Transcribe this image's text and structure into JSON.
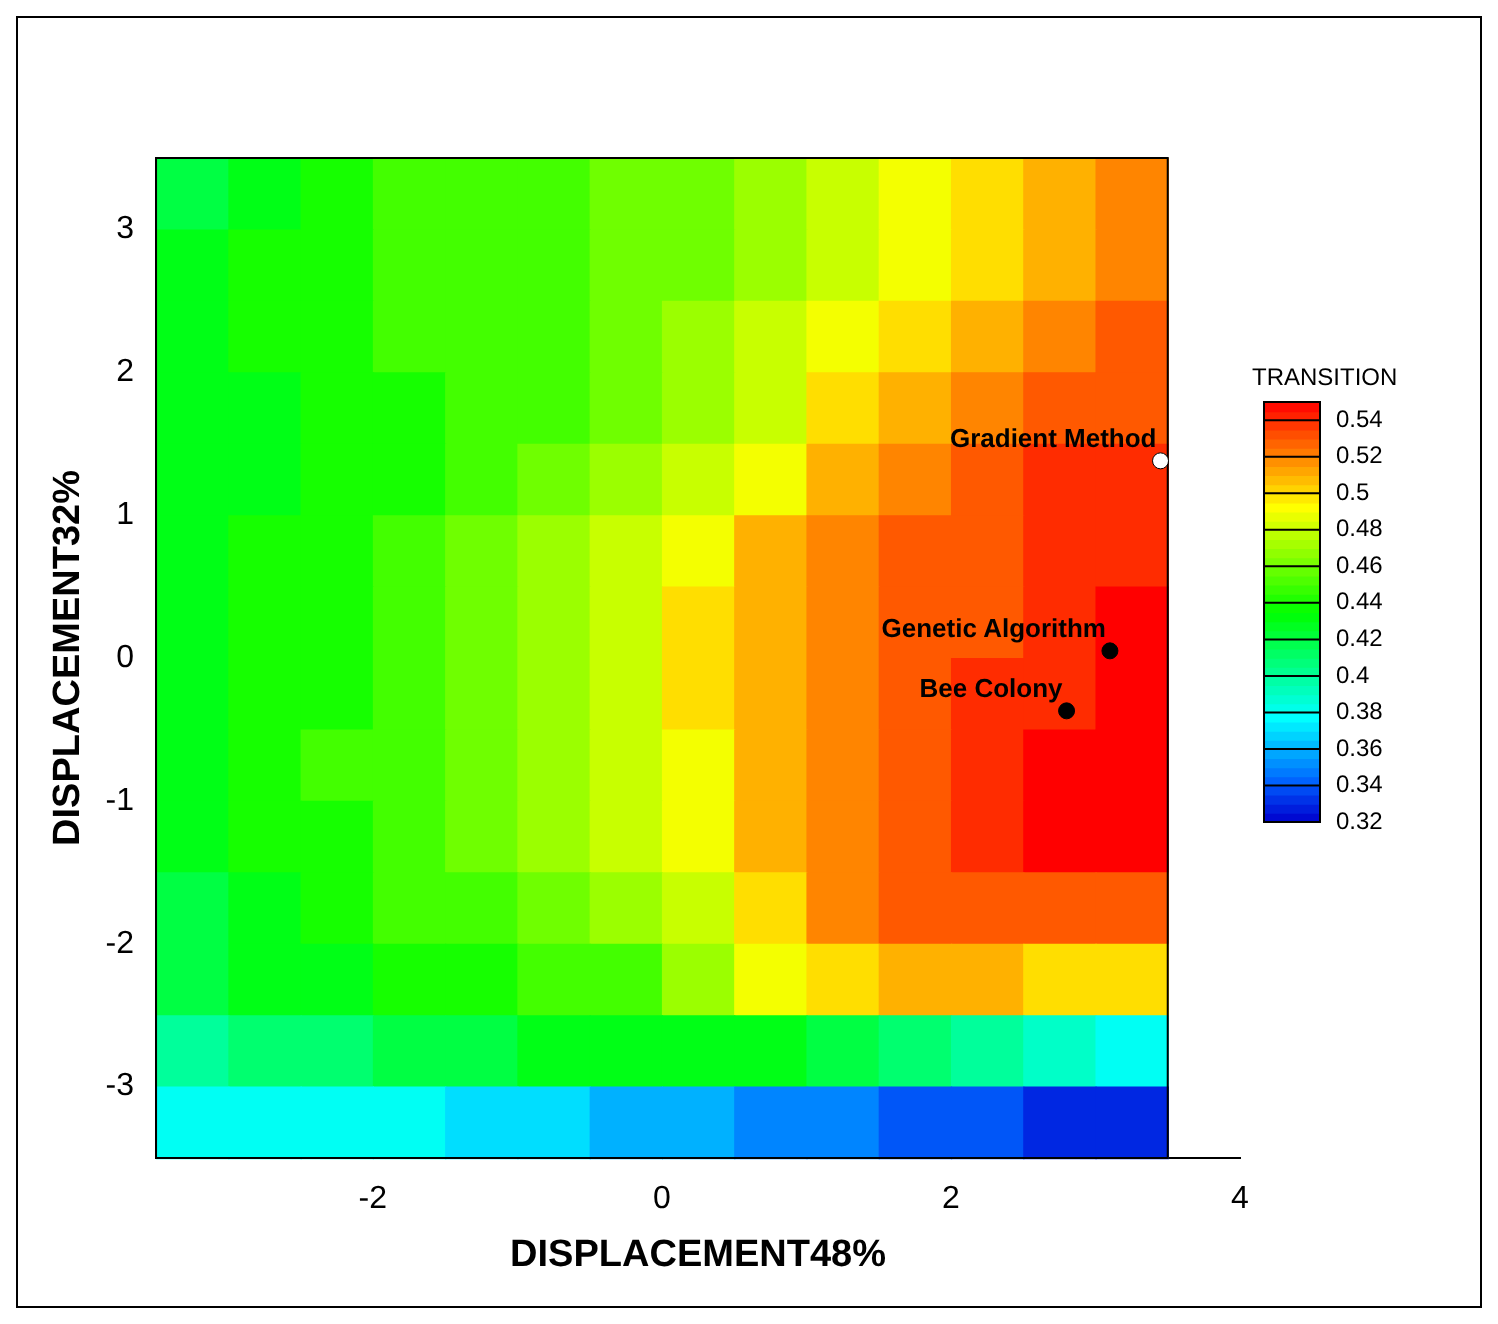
{
  "chart_data": {
    "type": "heatmap",
    "xlabel": "DISPLACEMENT48%",
    "ylabel": "DISPLACEMENT32%",
    "clabel": "TRANSITION",
    "x": [
      -3.25,
      -2.75,
      -2.25,
      -1.75,
      -1.25,
      -0.75,
      -0.25,
      0.25,
      0.75,
      1.25,
      1.75,
      2.25,
      2.75,
      3.25
    ],
    "y": [
      3.25,
      2.75,
      2.25,
      1.75,
      1.25,
      0.75,
      0.25,
      -0.25,
      -0.75,
      -1.25,
      -1.75,
      -2.25,
      -2.75,
      -3.25
    ],
    "xlim": [
      -3.5,
      4
    ],
    "ylim": [
      -3.5,
      3.5
    ],
    "xticks": [
      -2,
      0,
      2,
      4
    ],
    "yticks": [
      -3,
      -2,
      -1,
      0,
      1,
      2,
      3
    ],
    "clim": [
      0.32,
      0.55
    ],
    "cticks": [
      0.32,
      0.34,
      0.36,
      0.38,
      0.4,
      0.42,
      0.44,
      0.46,
      0.48,
      0.5,
      0.52,
      0.54
    ],
    "cells": [
      [
        0.42,
        0.43,
        0.44,
        0.45,
        0.45,
        0.45,
        0.46,
        0.46,
        0.47,
        0.48,
        0.49,
        0.5,
        0.51,
        0.52
      ],
      [
        0.43,
        0.44,
        0.44,
        0.45,
        0.45,
        0.45,
        0.46,
        0.46,
        0.47,
        0.48,
        0.49,
        0.5,
        0.51,
        0.52
      ],
      [
        0.43,
        0.44,
        0.44,
        0.45,
        0.45,
        0.45,
        0.46,
        0.47,
        0.48,
        0.49,
        0.5,
        0.51,
        0.52,
        0.53
      ],
      [
        0.43,
        0.43,
        0.44,
        0.44,
        0.45,
        0.45,
        0.46,
        0.47,
        0.48,
        0.5,
        0.51,
        0.52,
        0.53,
        0.53
      ],
      [
        0.43,
        0.43,
        0.44,
        0.44,
        0.45,
        0.46,
        0.47,
        0.48,
        0.49,
        0.51,
        0.52,
        0.53,
        0.54,
        0.54
      ],
      [
        0.43,
        0.44,
        0.44,
        0.45,
        0.46,
        0.47,
        0.48,
        0.49,
        0.51,
        0.52,
        0.53,
        0.53,
        0.54,
        0.54
      ],
      [
        0.43,
        0.44,
        0.44,
        0.45,
        0.46,
        0.47,
        0.48,
        0.5,
        0.51,
        0.52,
        0.53,
        0.53,
        0.54,
        0.55
      ],
      [
        0.43,
        0.44,
        0.44,
        0.45,
        0.46,
        0.47,
        0.48,
        0.5,
        0.51,
        0.52,
        0.53,
        0.54,
        0.54,
        0.55
      ],
      [
        0.43,
        0.44,
        0.45,
        0.45,
        0.46,
        0.47,
        0.48,
        0.49,
        0.51,
        0.52,
        0.53,
        0.54,
        0.55,
        0.55
      ],
      [
        0.43,
        0.44,
        0.44,
        0.45,
        0.46,
        0.47,
        0.48,
        0.49,
        0.51,
        0.52,
        0.53,
        0.54,
        0.55,
        0.55
      ],
      [
        0.42,
        0.43,
        0.44,
        0.45,
        0.45,
        0.46,
        0.47,
        0.48,
        0.5,
        0.52,
        0.53,
        0.53,
        0.53,
        0.53
      ],
      [
        0.42,
        0.43,
        0.43,
        0.44,
        0.44,
        0.45,
        0.45,
        0.47,
        0.49,
        0.5,
        0.51,
        0.51,
        0.5,
        0.5
      ],
      [
        0.4,
        0.41,
        0.41,
        0.42,
        0.42,
        0.43,
        0.43,
        0.43,
        0.43,
        0.42,
        0.41,
        0.4,
        0.39,
        0.38
      ],
      [
        0.38,
        0.38,
        0.38,
        0.38,
        0.37,
        0.37,
        0.36,
        0.36,
        0.35,
        0.35,
        0.34,
        0.34,
        0.33,
        0.33
      ]
    ],
    "series": [
      {
        "name": "Gradient Method",
        "type": "scatter",
        "color": "#ffffff",
        "x": [
          3.45
        ],
        "values": [
          1.38
        ]
      },
      {
        "name": "Genetic Algorithm",
        "type": "scatter",
        "color": "#000000",
        "x": [
          3.1
        ],
        "values": [
          0.05
        ]
      },
      {
        "name": "Bee Colony",
        "type": "scatter",
        "color": "#000000",
        "x": [
          2.8
        ],
        "values": [
          -0.37
        ]
      }
    ],
    "marker": "circle"
  }
}
